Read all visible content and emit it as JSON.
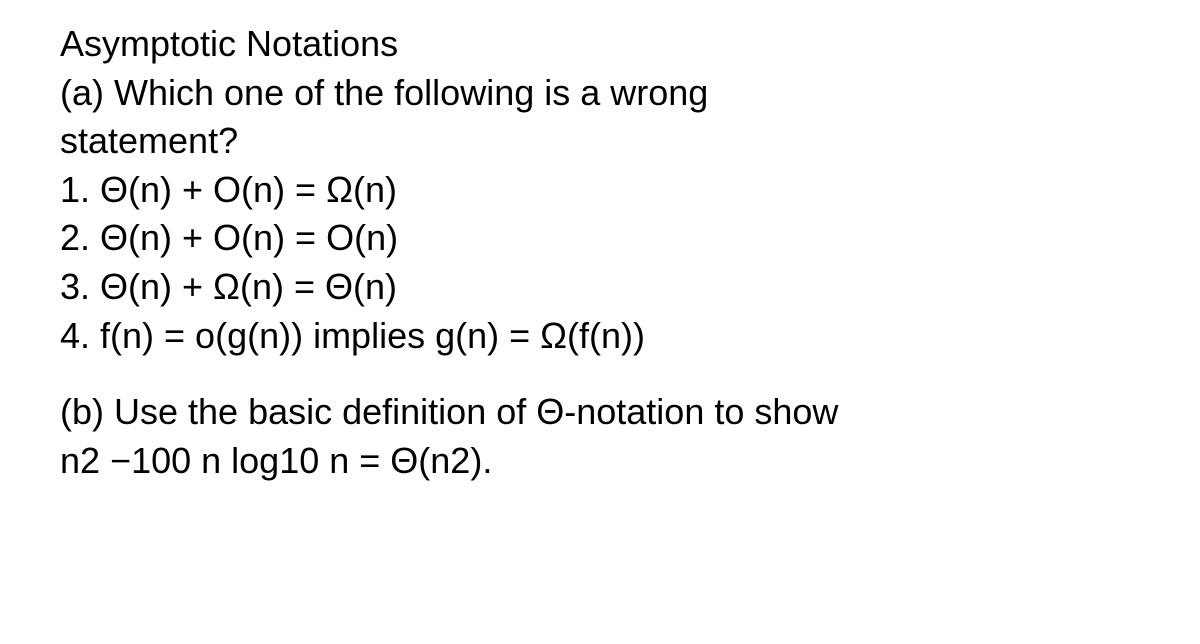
{
  "text_color": "#000000",
  "background_color": "#ffffff",
  "font_size": 36,
  "font_family": "Segoe UI, Arial, sans-serif",
  "title": "Asymptotic Notations",
  "part_a": {
    "prompt_line1": "(a) Which one of the following is a wrong",
    "prompt_line2": "statement?",
    "options": [
      "1. Θ(n) + O(n) = Ω(n)",
      "2. Θ(n) + O(n) = O(n)",
      "3. Θ(n) + Ω(n) = Θ(n)",
      "4. f(n) = o(g(n)) implies g(n) = Ω(f(n))"
    ]
  },
  "part_b": {
    "line1": "(b) Use the basic definition of Θ-notation to show",
    "line2": "n2 −100 n log10 n = Θ(n2)."
  }
}
